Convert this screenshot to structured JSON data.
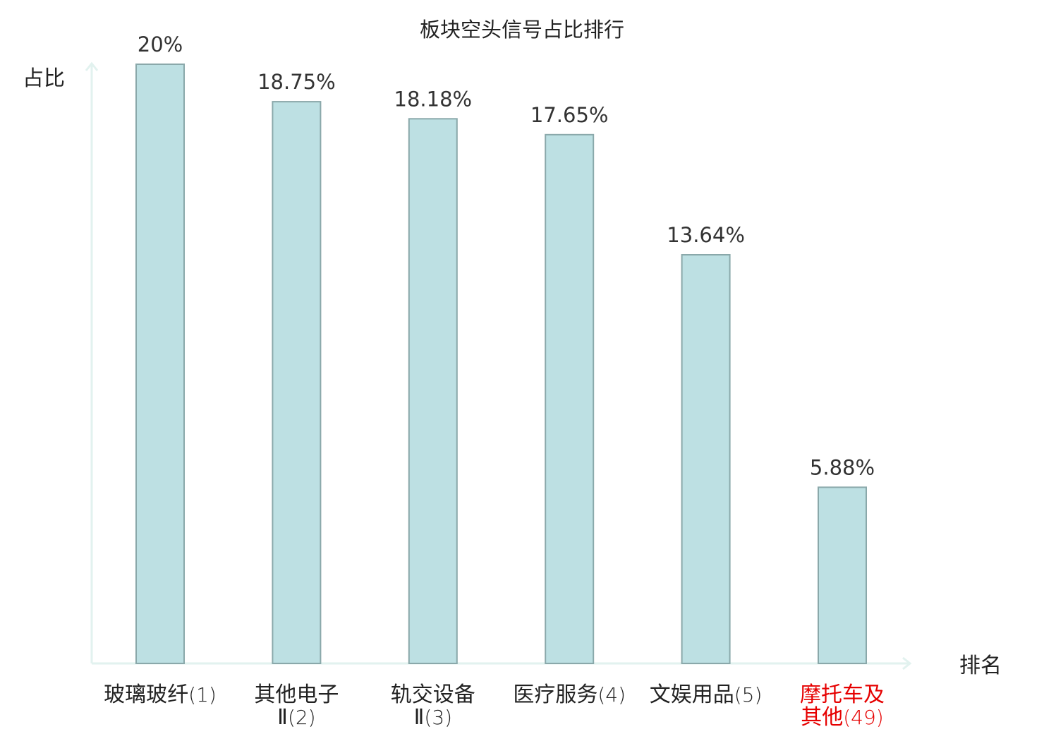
{
  "chart_data": {
    "type": "bar",
    "title": "板块空头信号占比排行",
    "ylabel": "占比",
    "xlabel": "排名",
    "ylim": [
      0,
      20
    ],
    "grid": false,
    "categories": [
      {
        "lines": [
          "玻璃玻纤"
        ],
        "rank": "(1)",
        "highlight": false
      },
      {
        "lines": [
          "其他电子",
          "Ⅱ"
        ],
        "rank": "(2)",
        "highlight": false
      },
      {
        "lines": [
          "轨交设备",
          "Ⅱ"
        ],
        "rank": "(3)",
        "highlight": false
      },
      {
        "lines": [
          "医疗服务"
        ],
        "rank": "(4)",
        "highlight": false
      },
      {
        "lines": [
          "文娱用品"
        ],
        "rank": "(5)",
        "highlight": false
      },
      {
        "lines": [
          "摩托车及",
          "其他"
        ],
        "rank": "(49)",
        "highlight": true
      }
    ],
    "values": [
      20,
      18.75,
      18.18,
      17.65,
      13.64,
      5.88
    ],
    "value_labels": [
      "20%",
      "18.75%",
      "18.18%",
      "17.65%",
      "13.64%",
      "5.88%"
    ],
    "colors": {
      "bar_fill": "#bde0e3",
      "bar_stroke": "#8aa8aa",
      "axis": "#e2f2ef",
      "text": "#222222",
      "highlight": "#e60000"
    }
  }
}
